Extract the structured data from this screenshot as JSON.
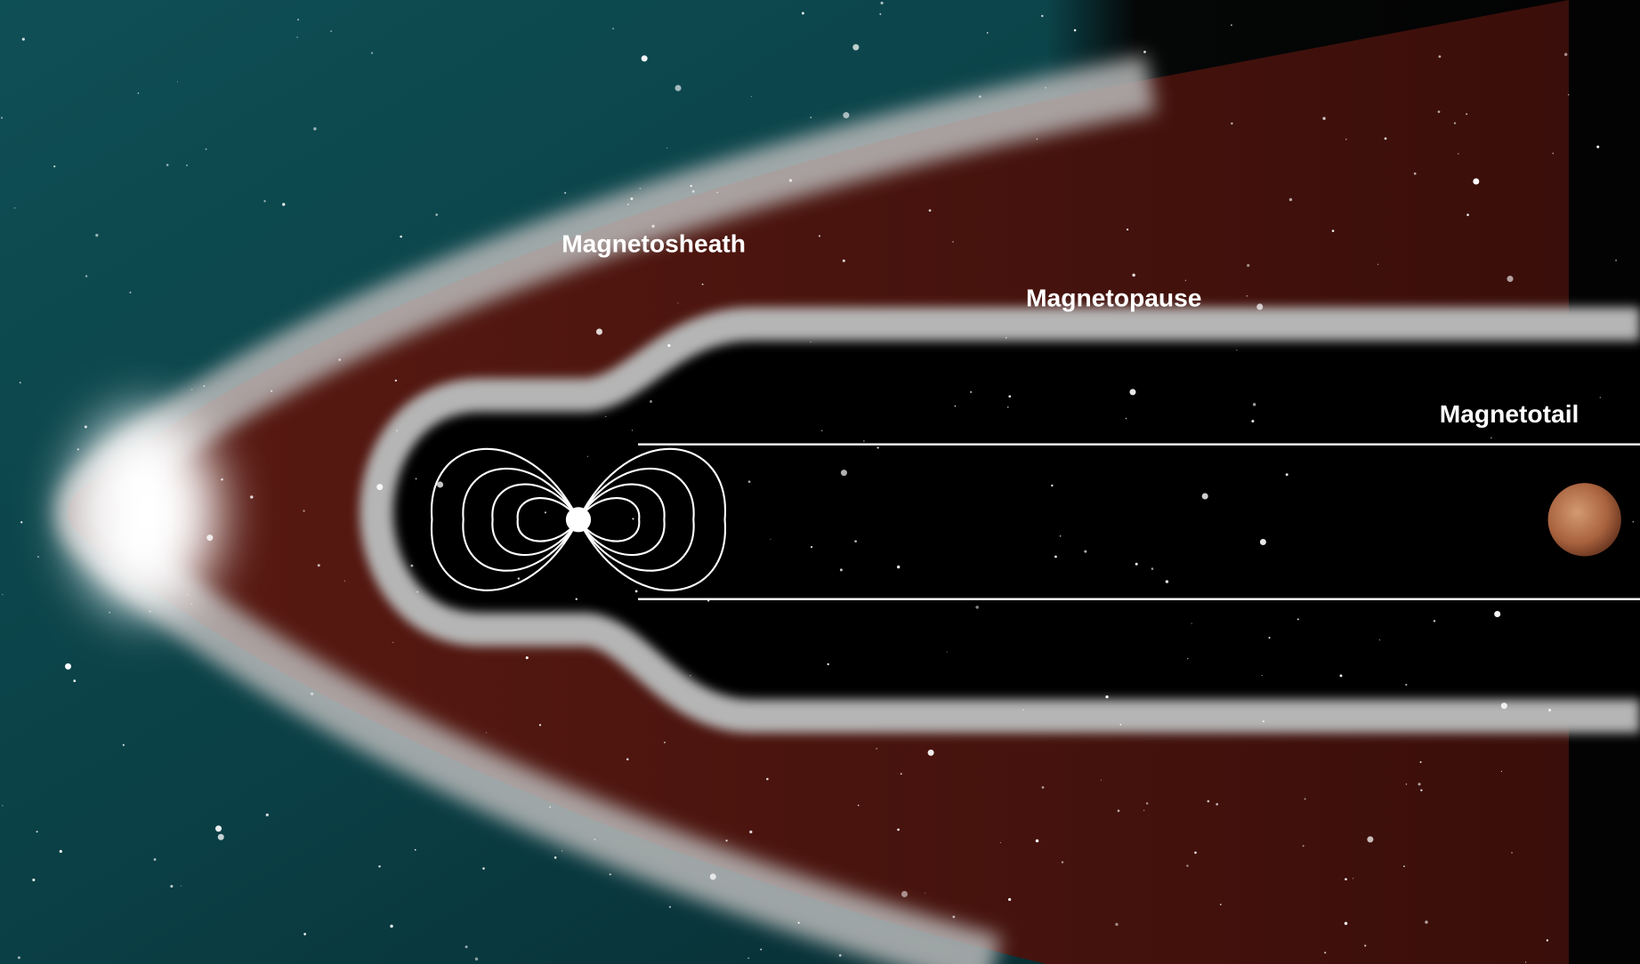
{
  "labels": {
    "magnetosheath": "Magnetosheath",
    "magnetopause": "Magnetopause",
    "magnetotail": "Magnetotail"
  }
}
